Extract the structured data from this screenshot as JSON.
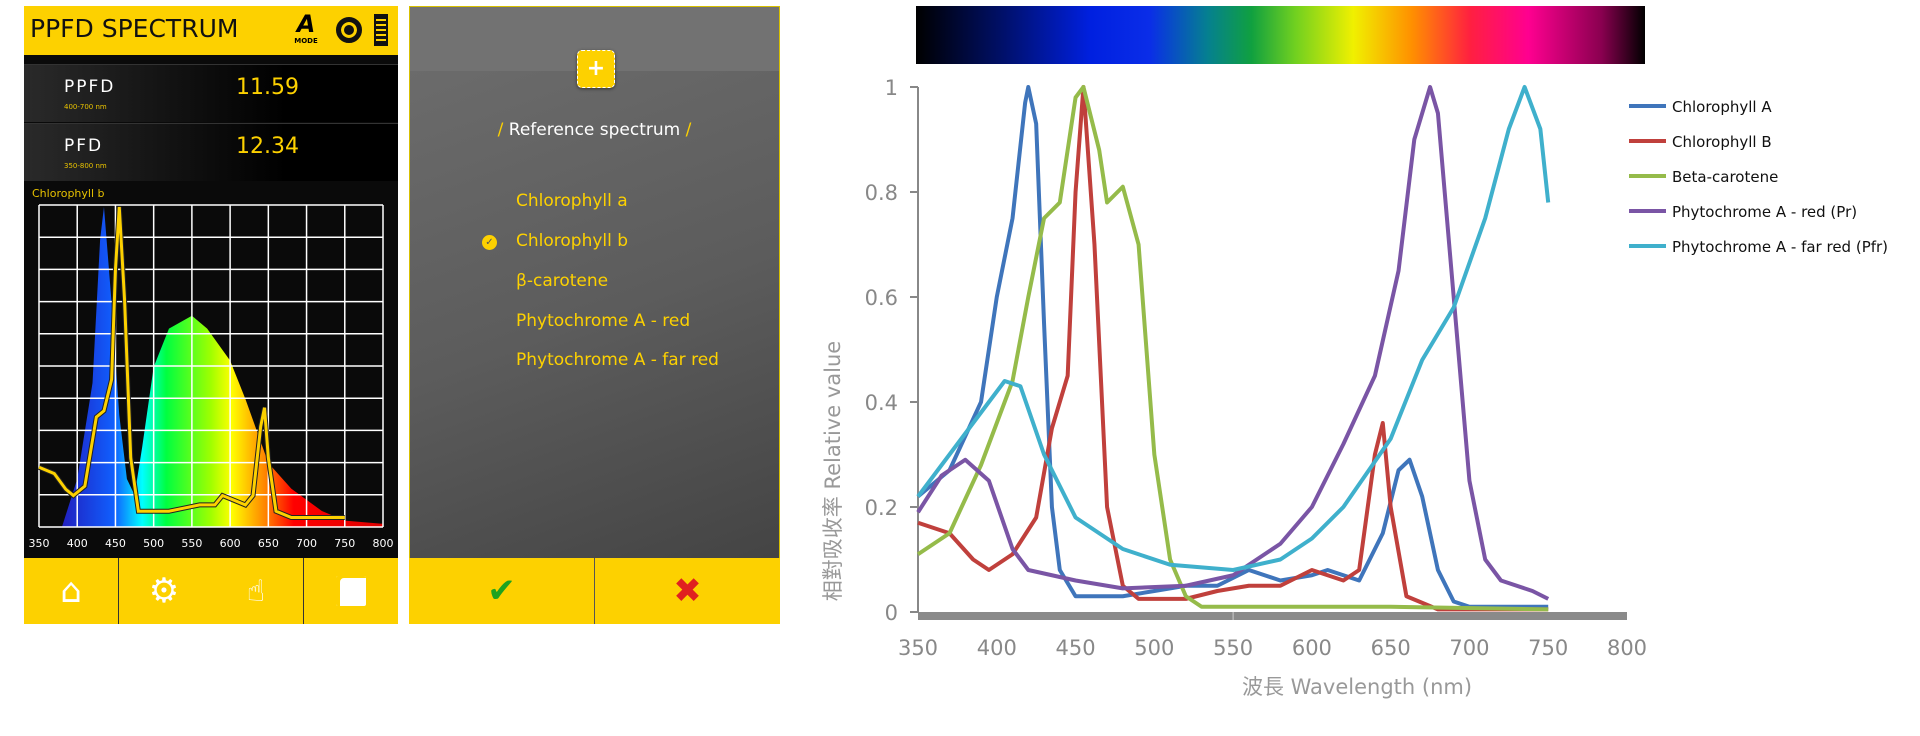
{
  "app": {
    "title": "PPFD SPECTRUM",
    "mode_label": "MODE",
    "readings": [
      {
        "label": "PPFD",
        "range": "400-700 nm",
        "value": "11.59"
      },
      {
        "label": "PFD",
        "range": "350-800 nm",
        "value": "12.34"
      }
    ],
    "overlay_label": "Chlorophyll b",
    "icons": [
      "mode-icon",
      "aperture-icon",
      "battery-icon",
      "home-icon",
      "gear-icon",
      "touch-icon",
      "save-icon"
    ]
  },
  "dialog": {
    "title_prefix": "/",
    "title": "Reference spectrum",
    "title_suffix": "/",
    "selected": 1,
    "items": [
      "Chlorophyll a",
      "Chlorophyll b",
      "β-carotene",
      "Phytochrome A - red",
      "Phytochrome A - far red"
    ],
    "confirm_color": "#1fa31f",
    "cancel_color": "#e02020"
  },
  "chart_data": [
    {
      "type": "line",
      "title": "",
      "xlabel": "波長 Wavelength (nm)",
      "ylabel": "相對吸收率 Relative value",
      "xlim": [
        350,
        800
      ],
      "ylim": [
        0,
        1
      ],
      "xticks": [
        "350",
        "400",
        "450",
        "500",
        "550",
        "600",
        "650",
        "700",
        "750",
        "800"
      ],
      "yticks": [
        "0",
        "0.2",
        "0.4",
        "0.6",
        "0.8",
        "1"
      ],
      "legend": "right",
      "grid": false,
      "series": [
        {
          "name": "Chlorophyll A",
          "color": "#3f75bb",
          "points": [
            [
              350,
              0.22
            ],
            [
              370,
              0.27
            ],
            [
              390,
              0.4
            ],
            [
              400,
              0.6
            ],
            [
              410,
              0.75
            ],
            [
              418,
              0.97
            ],
            [
              420,
              1
            ],
            [
              425,
              0.93
            ],
            [
              430,
              0.55
            ],
            [
              435,
              0.2
            ],
            [
              440,
              0.08
            ],
            [
              450,
              0.03
            ],
            [
              480,
              0.03
            ],
            [
              500,
              0.04
            ],
            [
              520,
              0.05
            ],
            [
              540,
              0.05
            ],
            [
              560,
              0.08
            ],
            [
              580,
              0.06
            ],
            [
              600,
              0.07
            ],
            [
              610,
              0.08
            ],
            [
              630,
              0.06
            ],
            [
              645,
              0.15
            ],
            [
              655,
              0.27
            ],
            [
              662,
              0.29
            ],
            [
              670,
              0.22
            ],
            [
              680,
              0.08
            ],
            [
              690,
              0.02
            ],
            [
              700,
              0.01
            ],
            [
              750,
              0.01
            ]
          ]
        },
        {
          "name": "Chlorophyll B",
          "color": "#c0403c",
          "points": [
            [
              350,
              0.17
            ],
            [
              370,
              0.15
            ],
            [
              385,
              0.1
            ],
            [
              395,
              0.08
            ],
            [
              410,
              0.11
            ],
            [
              425,
              0.18
            ],
            [
              435,
              0.35
            ],
            [
              445,
              0.45
            ],
            [
              450,
              0.8
            ],
            [
              455,
              1
            ],
            [
              462,
              0.7
            ],
            [
              470,
              0.2
            ],
            [
              480,
              0.05
            ],
            [
              490,
              0.025
            ],
            [
              520,
              0.025
            ],
            [
              540,
              0.04
            ],
            [
              560,
              0.05
            ],
            [
              580,
              0.05
            ],
            [
              600,
              0.08
            ],
            [
              620,
              0.06
            ],
            [
              630,
              0.08
            ],
            [
              640,
              0.3
            ],
            [
              645,
              0.36
            ],
            [
              650,
              0.2
            ],
            [
              660,
              0.03
            ],
            [
              680,
              0.005
            ],
            [
              750,
              0.005
            ]
          ]
        },
        {
          "name": "Beta-carotene",
          "color": "#95bb4a",
          "points": [
            [
              350,
              0.11
            ],
            [
              370,
              0.15
            ],
            [
              390,
              0.28
            ],
            [
              410,
              0.44
            ],
            [
              420,
              0.6
            ],
            [
              430,
              0.75
            ],
            [
              440,
              0.78
            ],
            [
              450,
              0.98
            ],
            [
              455,
              1
            ],
            [
              465,
              0.88
            ],
            [
              470,
              0.78
            ],
            [
              480,
              0.81
            ],
            [
              490,
              0.7
            ],
            [
              500,
              0.3
            ],
            [
              510,
              0.1
            ],
            [
              520,
              0.03
            ],
            [
              530,
              0.01
            ],
            [
              580,
              0.01
            ],
            [
              650,
              0.01
            ],
            [
              750,
              0.005
            ]
          ]
        },
        {
          "name": "Phytochrome A - red (Pr)",
          "color": "#7a55a5",
          "points": [
            [
              350,
              0.19
            ],
            [
              365,
              0.26
            ],
            [
              380,
              0.29
            ],
            [
              395,
              0.25
            ],
            [
              410,
              0.12
            ],
            [
              420,
              0.08
            ],
            [
              450,
              0.06
            ],
            [
              480,
              0.045
            ],
            [
              520,
              0.05
            ],
            [
              550,
              0.07
            ],
            [
              580,
              0.13
            ],
            [
              600,
              0.2
            ],
            [
              620,
              0.32
            ],
            [
              640,
              0.45
            ],
            [
              655,
              0.65
            ],
            [
              665,
              0.9
            ],
            [
              675,
              1
            ],
            [
              680,
              0.95
            ],
            [
              690,
              0.6
            ],
            [
              700,
              0.25
            ],
            [
              710,
              0.1
            ],
            [
              720,
              0.06
            ],
            [
              740,
              0.04
            ],
            [
              750,
              0.025
            ]
          ]
        },
        {
          "name": "Phytochrome A - far red (Pfr)",
          "color": "#3fb0cc",
          "points": [
            [
              350,
              0.22
            ],
            [
              370,
              0.3
            ],
            [
              390,
              0.38
            ],
            [
              405,
              0.44
            ],
            [
              415,
              0.43
            ],
            [
              430,
              0.3
            ],
            [
              450,
              0.18
            ],
            [
              480,
              0.12
            ],
            [
              510,
              0.09
            ],
            [
              550,
              0.08
            ],
            [
              580,
              0.1
            ],
            [
              600,
              0.14
            ],
            [
              620,
              0.2
            ],
            [
              650,
              0.33
            ],
            [
              670,
              0.48
            ],
            [
              690,
              0.58
            ],
            [
              710,
              0.75
            ],
            [
              725,
              0.92
            ],
            [
              735,
              1
            ],
            [
              745,
              0.92
            ],
            [
              750,
              0.78
            ]
          ]
        }
      ]
    },
    {
      "type": "area",
      "title": "Chlorophyll b",
      "xlim": [
        350,
        800
      ],
      "ylim": [
        0,
        1
      ],
      "xticks": [
        "350",
        "400",
        "450",
        "500",
        "550",
        "600",
        "650",
        "700",
        "750",
        "800"
      ],
      "light_spectrum": [
        [
          380,
          0
        ],
        [
          400,
          0.15
        ],
        [
          420,
          0.45
        ],
        [
          430,
          0.9
        ],
        [
          435,
          1
        ],
        [
          445,
          0.7
        ],
        [
          455,
          0.35
        ],
        [
          465,
          0.15
        ],
        [
          475,
          0.1
        ],
        [
          485,
          0.25
        ],
        [
          500,
          0.5
        ],
        [
          520,
          0.62
        ],
        [
          550,
          0.66
        ],
        [
          570,
          0.62
        ],
        [
          600,
          0.52
        ],
        [
          620,
          0.4
        ],
        [
          650,
          0.2
        ],
        [
          680,
          0.12
        ],
        [
          720,
          0.05
        ],
        [
          750,
          0.02
        ],
        [
          800,
          0.01
        ]
      ],
      "overlay": [
        [
          350,
          0.17
        ],
        [
          370,
          0.15
        ],
        [
          385,
          0.1
        ],
        [
          395,
          0.08
        ],
        [
          410,
          0.11
        ],
        [
          425,
          0.33
        ],
        [
          435,
          0.35
        ],
        [
          445,
          0.45
        ],
        [
          450,
          0.8
        ],
        [
          455,
          1
        ],
        [
          462,
          0.7
        ],
        [
          470,
          0.2
        ],
        [
          480,
          0.03
        ],
        [
          520,
          0.03
        ],
        [
          540,
          0.04
        ],
        [
          560,
          0.05
        ],
        [
          580,
          0.05
        ],
        [
          590,
          0.08
        ],
        [
          600,
          0.07
        ],
        [
          620,
          0.05
        ],
        [
          630,
          0.08
        ],
        [
          640,
          0.3
        ],
        [
          645,
          0.36
        ],
        [
          650,
          0.2
        ],
        [
          660,
          0.03
        ],
        [
          680,
          0.01
        ],
        [
          750,
          0.01
        ]
      ],
      "overlay_color": "#fdd100"
    }
  ]
}
